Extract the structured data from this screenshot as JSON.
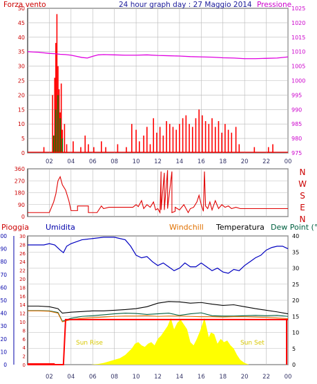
{
  "colors": {
    "wind": "#ff0000",
    "gust": "#008000",
    "windDarkBlue": "#0000c0",
    "pressure": "#e000e0",
    "direction": "#e00000",
    "humidity": "#0000c0",
    "rain": "#ff0000",
    "windchill": "#e07000",
    "temperature": "#000000",
    "dewpoint": "#006040",
    "solar": "#ffff00",
    "grid": "#b8b8b8"
  },
  "chart_data": [
    {
      "type": "bar",
      "title": "24 hour graph day : 27 Maggio 2014",
      "ylabel": "Forza vento",
      "y2label": "Pressione",
      "x_ticks": [
        "02",
        "04",
        "06",
        "08",
        "10",
        "12",
        "14",
        "16",
        "18",
        "20",
        "22",
        "00"
      ],
      "yticks": [
        "0",
        "5",
        "10",
        "15",
        "20",
        "25",
        "30",
        "35",
        "40",
        "45",
        "50"
      ],
      "y2ticks": [
        "975",
        "980",
        "985",
        "990",
        "995",
        "1000",
        "1005",
        "1010",
        "1015",
        "1020",
        "1025"
      ],
      "ylim": [
        0,
        50
      ],
      "y2lim": [
        975,
        1025
      ],
      "grid": true,
      "series": [
        {
          "name": "Forza vento",
          "type": "bar",
          "x": [
            1.5,
            2.3,
            2.5,
            2.6,
            2.7,
            2.8,
            2.9,
            3.0,
            3.1,
            3.2,
            3.4,
            3.6,
            4.2,
            4.9,
            5.3,
            5.6,
            6.1,
            6.8,
            7.2,
            8.3,
            9.1,
            9.6,
            10.0,
            10.3,
            10.7,
            11.0,
            11.3,
            11.6,
            11.9,
            12.2,
            12.5,
            12.8,
            13.1,
            13.4,
            13.7,
            14.0,
            14.3,
            14.6,
            14.9,
            15.2,
            15.5,
            15.8,
            16.1,
            16.4,
            16.7,
            17.0,
            17.3,
            17.6,
            17.9,
            18.2,
            18.5,
            18.8,
            19.2,
            19.5,
            20.9,
            22.2,
            22.6
          ],
          "values": [
            2,
            20,
            26,
            38,
            48,
            30,
            22,
            14,
            24,
            8,
            10,
            3,
            4,
            2,
            6,
            3,
            2,
            4,
            2,
            3,
            2,
            10,
            8,
            4,
            6,
            9,
            3,
            12,
            7,
            9,
            6,
            11,
            10,
            9,
            8,
            10,
            12,
            13,
            10,
            9,
            12,
            15,
            13,
            11,
            10,
            12,
            9,
            11,
            7,
            10,
            8,
            7,
            9,
            3,
            2,
            2,
            3
          ]
        },
        {
          "name": "Raffica",
          "type": "bar",
          "x": [
            2.4,
            2.6,
            2.8,
            3.0,
            3.2
          ],
          "values": [
            6,
            15,
            20,
            12,
            5
          ]
        },
        {
          "name": "Pressione",
          "type": "line",
          "x": [
            0,
            0.5,
            1.0,
            1.5,
            2.0,
            2.5,
            3.0,
            3.5,
            4.0,
            4.5,
            5.0,
            5.5,
            6.0,
            6.5,
            7.0,
            8.0,
            9.0,
            10.0,
            11.0,
            12.0,
            13.0,
            14.0,
            15.0,
            16.0,
            17.0,
            18.0,
            19.0,
            20.0,
            21.0,
            22.0,
            23.0,
            24.0
          ],
          "values": [
            1010.0,
            1009.9,
            1009.8,
            1009.6,
            1009.4,
            1009.3,
            1009.1,
            1009.0,
            1008.8,
            1008.4,
            1008.0,
            1007.8,
            1008.4,
            1008.9,
            1009.0,
            1008.9,
            1008.8,
            1008.8,
            1008.9,
            1008.7,
            1008.6,
            1008.5,
            1008.3,
            1008.2,
            1008.1,
            1007.9,
            1007.8,
            1007.6,
            1007.6,
            1007.7,
            1007.8,
            1008.2
          ]
        }
      ]
    },
    {
      "type": "line",
      "ylabel_right": [
        "N",
        "W",
        "S",
        "E",
        "N"
      ],
      "yticks": [
        "0",
        "90",
        "180",
        "270",
        "360"
      ],
      "ylim": [
        0,
        360
      ],
      "x_ticks": [],
      "grid": true,
      "series": [
        {
          "name": "Direzione vento",
          "x": [
            0,
            1.0,
            2.0,
            2.4,
            2.6,
            2.8,
            3.0,
            3.2,
            3.5,
            3.8,
            4.0,
            4.6,
            4.6,
            5.6,
            5.6,
            6.4,
            6.8,
            7.0,
            7.5,
            8.0,
            9.0,
            9.7,
            10.0,
            10.2,
            10.5,
            10.7,
            11.0,
            11.3,
            11.6,
            11.8,
            12.0,
            12.2,
            12.3,
            12.3,
            12.6,
            12.6,
            12.9,
            12.9,
            13.3,
            13.3,
            13.6,
            13.6,
            14.0,
            14.4,
            14.8,
            15.0,
            15.3,
            15.6,
            15.8,
            16.0,
            16.2,
            16.3,
            16.4,
            16.6,
            16.8,
            17.0,
            17.3,
            17.6,
            17.9,
            18.2,
            18.5,
            18.8,
            19.2,
            19.6,
            20.0,
            21.0,
            22.0,
            23.0,
            24.0
          ],
          "values": [
            30,
            30,
            30,
            110,
            170,
            270,
            300,
            240,
            200,
            120,
            45,
            45,
            80,
            80,
            30,
            30,
            80,
            60,
            70,
            70,
            70,
            70,
            90,
            75,
            120,
            60,
            90,
            70,
            110,
            50,
            60,
            30,
            340,
            50,
            330,
            50,
            350,
            60,
            340,
            30,
            40,
            70,
            50,
            90,
            30,
            60,
            70,
            110,
            160,
            90,
            40,
            340,
            80,
            60,
            110,
            50,
            120,
            60,
            90,
            70,
            80,
            60,
            70,
            60,
            60,
            60,
            60,
            60,
            60
          ]
        }
      ]
    },
    {
      "type": "area",
      "legend": [
        "Pioggia",
        "Umidita",
        "Windchill",
        "Temperatura",
        "Dew Point (°C"
      ],
      "x_ticks": [
        "02",
        "04",
        "06",
        "08",
        "10",
        "12",
        "14",
        "16",
        "18",
        "20",
        "22",
        "00"
      ],
      "yticks_left_outer": [
        "0",
        "10",
        "20",
        "30",
        "40",
        "50",
        "60",
        "70",
        "80",
        "90",
        "100"
      ],
      "yticks_left_inner": [
        "0",
        "2",
        "4",
        "6",
        "8",
        "10",
        "12",
        "14",
        "16",
        "18",
        "20",
        "22",
        "24",
        "26",
        "28",
        "30"
      ],
      "yticks_right": [
        "0",
        "5",
        "10",
        "15",
        "20",
        "25",
        "30",
        "35",
        "40"
      ],
      "annotations": [
        "Sun Rise",
        "Sun Set"
      ],
      "grid": true,
      "series": [
        {
          "name": "Umidita",
          "x": [
            0,
            0.5,
            1.0,
            1.5,
            2.0,
            2.5,
            3.0,
            3.3,
            3.6,
            4.0,
            5.0,
            6.0,
            7.0,
            8.0,
            9.0,
            9.5,
            10.0,
            10.5,
            11.0,
            11.5,
            12.0,
            12.5,
            13.0,
            13.5,
            14.0,
            14.5,
            15.0,
            15.5,
            16.0,
            16.5,
            17.0,
            17.5,
            18.0,
            18.5,
            19.0,
            19.5,
            20.0,
            20.5,
            21.0,
            21.5,
            22.0,
            22.5,
            23.0,
            23.5,
            24.0
          ],
          "values": [
            93,
            93,
            93,
            93,
            94,
            93,
            89,
            87,
            92,
            94,
            97,
            98,
            99,
            99,
            97,
            92,
            85,
            83,
            84,
            80,
            77,
            79,
            76,
            73,
            75,
            79,
            76,
            76,
            79,
            76,
            73,
            75,
            72,
            71,
            74,
            73,
            77,
            80,
            83,
            85,
            89,
            91,
            92,
            92,
            90
          ]
        },
        {
          "name": "Temperatura",
          "x": [
            0,
            1,
            2,
            2.8,
            3.2,
            4,
            5,
            6,
            7,
            8,
            9,
            10,
            11,
            12,
            13,
            14,
            15,
            16,
            17,
            18,
            19,
            20,
            21,
            22,
            23,
            24
          ],
          "values": [
            18.2,
            18.2,
            18.0,
            17.4,
            16.0,
            16.3,
            16.5,
            16.7,
            16.7,
            16.9,
            17.1,
            17.4,
            18.0,
            19.1,
            19.6,
            19.5,
            19.1,
            19.3,
            18.8,
            18.4,
            18.6,
            18.0,
            17.4,
            16.9,
            16.4,
            15.8
          ]
        },
        {
          "name": "Dew Point",
          "x": [
            0,
            1,
            2,
            2.8,
            3.2,
            4,
            5,
            6,
            7,
            8,
            9,
            10,
            11,
            12,
            13,
            14,
            15,
            16,
            17,
            18,
            19,
            20,
            21,
            22,
            23,
            24
          ],
          "values": [
            16.8,
            16.8,
            16.7,
            16.2,
            13.5,
            14.4,
            15.0,
            15.2,
            15.5,
            15.8,
            16.0,
            15.9,
            15.6,
            15.8,
            16.0,
            15.3,
            15.8,
            16.1,
            15.2,
            15.1,
            15.1,
            15.2,
            15.3,
            15.2,
            15.3,
            15.0
          ]
        },
        {
          "name": "Windchill",
          "x": [
            0,
            1,
            2,
            2.8,
            3.2,
            4,
            5,
            6,
            7,
            8,
            9,
            10,
            11,
            12,
            13,
            14,
            15,
            16,
            17,
            18,
            19,
            20,
            21,
            22,
            23,
            24
          ],
          "values": [
            16.7,
            16.7,
            16.6,
            16.0,
            13.3,
            14.0,
            14.4,
            14.6,
            14.8,
            15.0,
            15.1,
            15.1,
            15.2,
            15.0,
            15.1,
            15.1,
            15.0,
            14.9,
            14.9,
            14.8,
            14.9,
            14.9,
            14.8,
            14.7,
            14.5,
            14.3
          ]
        },
        {
          "name": "Pioggia",
          "x": [
            0,
            2.5,
            2.9,
            3.3,
            3.5,
            4,
            24
          ],
          "values": [
            0,
            0,
            0,
            0,
            10.5,
            10.5,
            10.5
          ]
        },
        {
          "name": "Solare",
          "x": [
            5.8,
            6.5,
            7.0,
            7.5,
            8.0,
            8.5,
            9.0,
            9.3,
            9.6,
            9.9,
            10.2,
            10.5,
            10.8,
            11.1,
            11.4,
            11.7,
            12.0,
            12.3,
            12.6,
            12.9,
            13.2,
            13.5,
            13.8,
            14.1,
            14.4,
            14.7,
            15.0,
            15.3,
            15.6,
            15.9,
            16.1,
            16.3,
            16.5,
            16.7,
            16.9,
            17.2,
            17.5,
            17.8,
            18.1,
            18.4,
            18.7,
            19.0,
            19.3,
            19.6,
            20.0,
            20.4
          ],
          "values": [
            0,
            0.2,
            0.5,
            1.0,
            1.5,
            2.0,
            3.0,
            4.0,
            5.0,
            6.5,
            7.0,
            6.0,
            5.5,
            6.5,
            7.0,
            6.0,
            8.0,
            9.0,
            10.5,
            12.0,
            14.5,
            11.0,
            13.0,
            14.0,
            12.5,
            11.0,
            7.0,
            6.0,
            8.0,
            10.5,
            12.5,
            14.5,
            11.5,
            8.5,
            10.0,
            9.5,
            6.5,
            8.0,
            7.0,
            7.5,
            6.0,
            5.0,
            3.0,
            1.5,
            0.5,
            0
          ]
        }
      ]
    }
  ],
  "texts": {
    "wind_label": "Forza vento",
    "title": "24 hour graph day : 27 Maggio 2014",
    "pressure_label": "Pressione",
    "pioggia": "Pioggia",
    "umidita": "Umidita",
    "windchill": "Windchill",
    "temperatura": "Temperatura",
    "dewpoint": "Dew Point (°C",
    "sunrise": "Sun Rise",
    "sunset": "Sun Set"
  }
}
